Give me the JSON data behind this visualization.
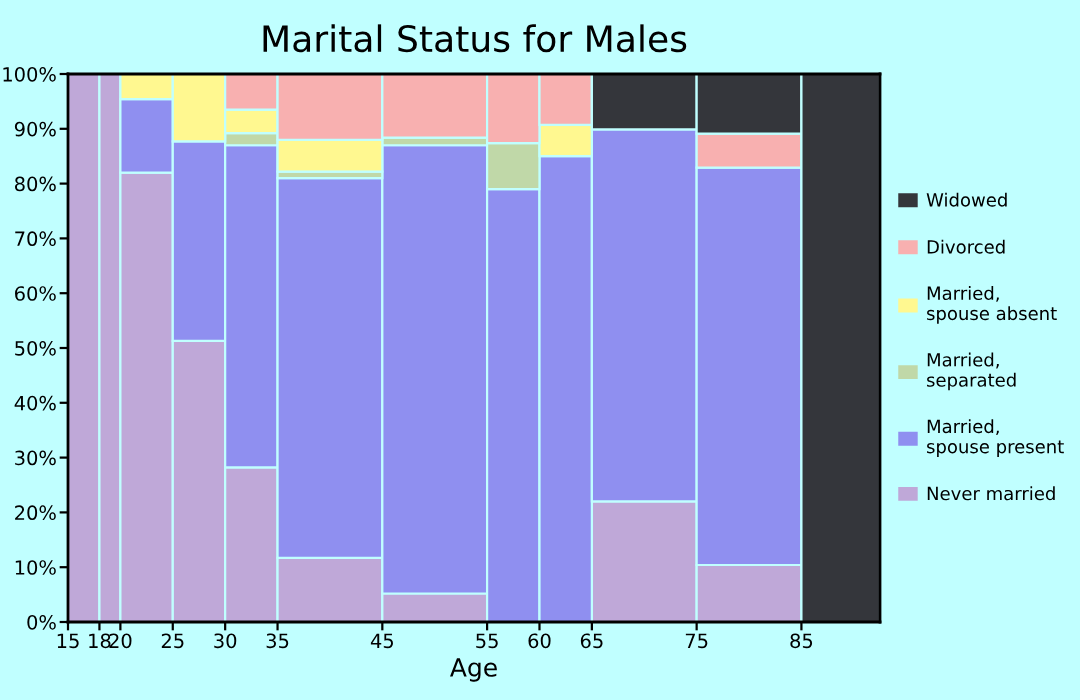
{
  "chart_data": {
    "type": "bar",
    "stacked": true,
    "title": "Marital Status for Males",
    "xlabel": "Age",
    "x": [
      16.5,
      19,
      22.5,
      27.5,
      32.5,
      40,
      50,
      57.5,
      62.5,
      70,
      80,
      88.75
    ],
    "xlim": [
      15,
      92.5
    ],
    "xticks": [
      15,
      18,
      20,
      25,
      30,
      35,
      45,
      55,
      60,
      65,
      75,
      85
    ],
    "ylim": [
      0,
      100
    ],
    "yticks": [
      {
        "value": 0,
        "label": "0%"
      },
      {
        "value": 10,
        "label": "10%"
      },
      {
        "value": 20,
        "label": "20%"
      },
      {
        "value": 30,
        "label": "30%"
      },
      {
        "value": 40,
        "label": "40%"
      },
      {
        "value": 50,
        "label": "50%"
      },
      {
        "value": 60,
        "label": "60%"
      },
      {
        "value": 70,
        "label": "70%"
      },
      {
        "value": 80,
        "label": "80%"
      },
      {
        "value": 90,
        "label": "90%"
      },
      {
        "value": 100,
        "label": "100%"
      }
    ],
    "grid": false,
    "legend": "right",
    "series": [
      {
        "name": "Never married",
        "color": "#bfa8d8",
        "values": [
          100,
          100,
          82,
          51.3,
          28.2,
          11.7,
          5.2,
          0,
          0,
          22,
          10.4,
          0
        ]
      },
      {
        "name": "Married,\nspouse present",
        "color": "#8f8ff0",
        "values": [
          0,
          0,
          13.4,
          36.4,
          58.8,
          69.3,
          81.8,
          79,
          85,
          67.9,
          72.5,
          0
        ]
      },
      {
        "name": "Married,\nseparated",
        "color": "#c0d8a8",
        "values": [
          0,
          0,
          0,
          0,
          2.2,
          1.2,
          1.4,
          8.4,
          0,
          0,
          0,
          0
        ]
      },
      {
        "name": "Married,\nspouse absent",
        "color": "#fff890",
        "values": [
          0,
          0,
          4.6,
          12.3,
          4.3,
          5.8,
          0,
          0,
          5.7,
          0,
          0,
          0
        ]
      },
      {
        "name": "Divorced",
        "color": "#f8b0b0",
        "values": [
          0,
          0,
          0,
          0,
          6.5,
          12,
          11.6,
          12.6,
          9.3,
          0,
          6.2,
          0
        ]
      },
      {
        "name": "Widowed",
        "color": "#34363b",
        "values": [
          0,
          0,
          0,
          0,
          0,
          0,
          0,
          0,
          0,
          10.1,
          10.9,
          100
        ]
      }
    ]
  }
}
